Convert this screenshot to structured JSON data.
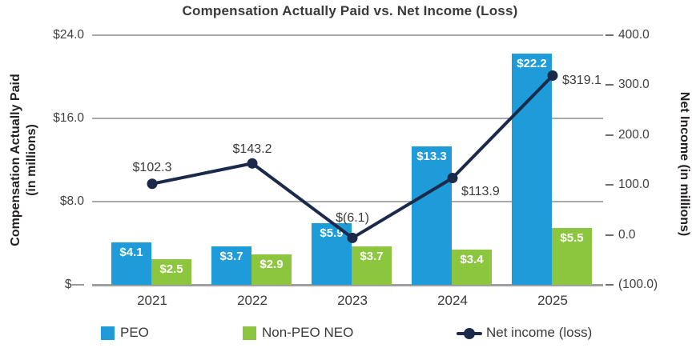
{
  "title": "Compensation Actually Paid vs. Net Income (Loss)",
  "left_axis": {
    "title_line1": "Compensation Actually Paid",
    "title_line2": "(in millions)",
    "ticks": [
      {
        "label": "$24.0",
        "value": 24
      },
      {
        "label": "$16.0",
        "value": 16
      },
      {
        "label": "$8.0",
        "value": 8
      },
      {
        "label": "$—",
        "value": 0
      }
    ]
  },
  "right_axis": {
    "title": "Net Income (in millions)",
    "ticks": [
      {
        "label": "400.0",
        "value": 400
      },
      {
        "label": "300.0",
        "value": 300
      },
      {
        "label": "200.0",
        "value": 200
      },
      {
        "label": "100.0",
        "value": 100
      },
      {
        "label": "0.0",
        "value": 0
      },
      {
        "label": "(100.0)",
        "value": -100
      }
    ]
  },
  "legend": {
    "peo_label": "PEO",
    "non_peo_label": "Non-PEO NEO",
    "net_income_label": "Net income (loss)"
  },
  "colors": {
    "peo_blue": "#1E9CD9",
    "non_peo_green": "#8CC63F",
    "net_income_navy": "#1B2A4B",
    "gridline_gray": "#A7A9AC",
    "text_dark": "#3A3A3C"
  },
  "chart_data": {
    "type": "bar",
    "subtype": "combo bar + line, dual axis",
    "title": "Compensation Actually Paid vs. Net Income (Loss)",
    "categories": [
      "2021",
      "2022",
      "2023",
      "2024",
      "2025"
    ],
    "series": [
      {
        "name": "PEO",
        "render": "bar",
        "axis": "left",
        "color": "#1E9CD9",
        "values": [
          4.1,
          3.7,
          5.9,
          13.3,
          22.2
        ],
        "labels": [
          "$4.1",
          "$3.7",
          "$5.9",
          "$13.3",
          "$22.2"
        ]
      },
      {
        "name": "Non-PEO NEO",
        "render": "bar",
        "axis": "left",
        "color": "#8CC63F",
        "values": [
          2.5,
          2.9,
          3.7,
          3.4,
          5.5
        ],
        "labels": [
          "$2.5",
          "$2.9",
          "$3.7",
          "$3.4",
          "$5.5"
        ]
      },
      {
        "name": "Net income (loss)",
        "render": "line",
        "axis": "right",
        "color": "#1B2A4B",
        "values": [
          102.3,
          143.2,
          -6.1,
          113.9,
          319.1
        ],
        "labels": [
          "$102.3",
          "$143.2",
          "$(6.1)",
          "$113.9",
          "$319.1"
        ]
      }
    ],
    "left_ylabel": "Compensation Actually Paid (in millions)",
    "right_ylabel": "Net Income (in millions)",
    "left_ylim": [
      0,
      24
    ],
    "right_ylim": [
      -100,
      400
    ],
    "grid": "horizontal gridlines at left-axis ticks",
    "legend_position": "bottom"
  }
}
